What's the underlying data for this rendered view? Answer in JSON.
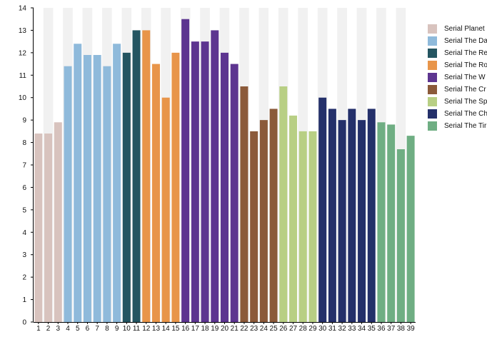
{
  "chart_data": {
    "type": "bar",
    "title": "",
    "xlabel": "",
    "ylabel": "",
    "ylim": [
      0,
      14
    ],
    "yticks": [
      0,
      1,
      2,
      3,
      4,
      5,
      6,
      7,
      8,
      9,
      10,
      11,
      12,
      13,
      14
    ],
    "grid": "alternating vertical bands",
    "legend_position": "right",
    "categories": [
      "1",
      "2",
      "3",
      "4",
      "5",
      "6",
      "7",
      "8",
      "9",
      "10",
      "11",
      "12",
      "13",
      "14",
      "15",
      "16",
      "17",
      "18",
      "19",
      "20",
      "21",
      "22",
      "23",
      "24",
      "25",
      "26",
      "27",
      "28",
      "29",
      "30",
      "31",
      "32",
      "33",
      "34",
      "35",
      "36",
      "37",
      "38",
      "39"
    ],
    "series": [
      {
        "name": "Serial Planet",
        "color": "#d8c3be",
        "x": [
          1,
          2,
          3
        ],
        "values": [
          8.4,
          8.4,
          8.9
        ]
      },
      {
        "name": "Serial The Da",
        "color": "#8fbadb",
        "x": [
          4,
          5,
          6,
          7,
          8,
          9
        ],
        "values": [
          11.4,
          12.4,
          11.9,
          11.9,
          11.4,
          12.4
        ]
      },
      {
        "name": "Serial The Re",
        "color": "#245561",
        "x": [
          10,
          11
        ],
        "values": [
          12.0,
          13.0
        ]
      },
      {
        "name": "Serial The Ro",
        "color": "#e8954a",
        "x": [
          12,
          13,
          14,
          15
        ],
        "values": [
          13.0,
          11.5,
          10.0,
          12.0
        ]
      },
      {
        "name": "Serial The W",
        "color": "#5d3590",
        "x": [
          16,
          17,
          18,
          19,
          20,
          21
        ],
        "values": [
          13.5,
          12.5,
          12.5,
          13.0,
          12.0,
          11.5
        ]
      },
      {
        "name": "Serial The Cr",
        "color": "#8b5a3a",
        "x": [
          22,
          23,
          24,
          25
        ],
        "values": [
          10.5,
          8.5,
          9.0,
          9.5
        ]
      },
      {
        "name": "Serial The Sp",
        "color": "#b8cf84",
        "x": [
          26,
          27,
          28,
          29
        ],
        "values": [
          10.5,
          9.2,
          8.5,
          8.5
        ]
      },
      {
        "name": "Serial The Ch",
        "color": "#24306a",
        "x": [
          30,
          31,
          32,
          33,
          34,
          35
        ],
        "values": [
          10.0,
          9.5,
          9.0,
          9.5,
          9.0,
          9.5
        ]
      },
      {
        "name": "Serial The Tir",
        "color": "#6fae83",
        "x": [
          36,
          37,
          38,
          39
        ],
        "values": [
          8.9,
          8.8,
          7.7,
          8.3
        ]
      }
    ]
  }
}
